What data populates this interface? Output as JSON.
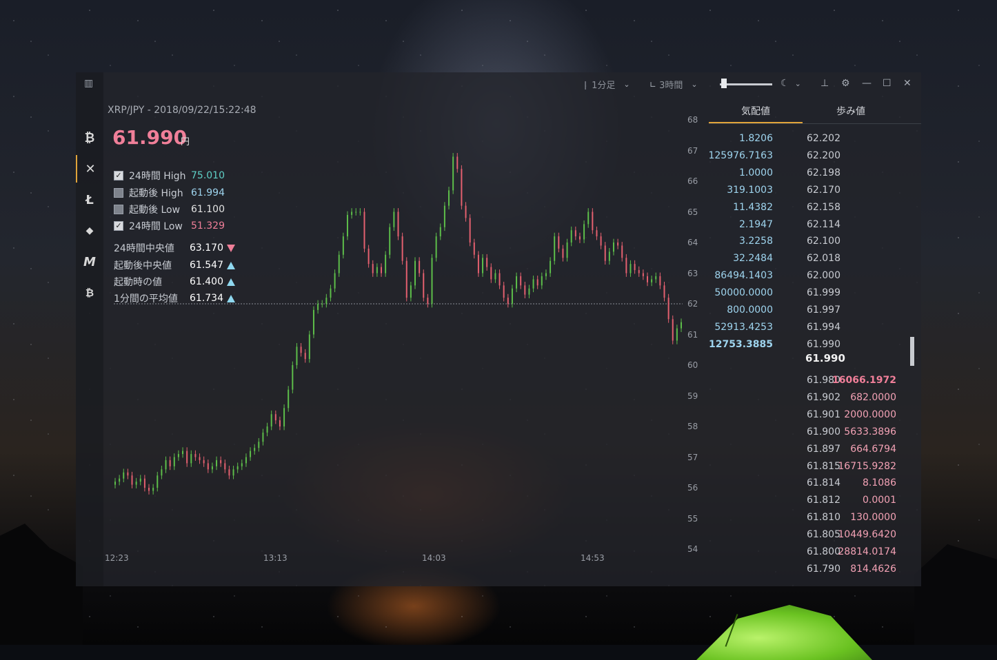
{
  "window": {
    "interval": "1分足",
    "range": "3時間"
  },
  "sidebar": {
    "items": [
      {
        "name": "bitcoin",
        "glyph": "₿"
      },
      {
        "name": "xrp",
        "glyph": "✕"
      },
      {
        "name": "litecoin",
        "glyph": "Ł"
      },
      {
        "name": "ethereum",
        "glyph": "◆"
      },
      {
        "name": "monacoin",
        "glyph": "M"
      },
      {
        "name": "bitcoin-cash",
        "glyph": "₿"
      }
    ]
  },
  "ticker": {
    "pair": "XRP/JPY - 2018/09/22/15:22:48",
    "price": "61.990",
    "unit": "円"
  },
  "stats": {
    "h24_high_label": "24時間 High",
    "h24_high": "75.010",
    "boot_high_label": "起動後 High",
    "boot_high": "61.994",
    "boot_low_label": "起動後 Low",
    "boot_low": "61.100",
    "h24_low_label": "24時間 Low",
    "h24_low": "51.329",
    "h24_mid_label": "24時間中央値",
    "h24_mid": "63.170",
    "boot_mid_label": "起動後中央値",
    "boot_mid": "61.547",
    "boot_val_label": "起動時の値",
    "boot_val": "61.400",
    "avg1m_label": "1分間の平均値",
    "avg1m": "61.734"
  },
  "chart_data": {
    "type": "candlestick",
    "x_ticks": [
      "12:23",
      "13:13",
      "14:03",
      "14:53"
    ],
    "y_ticks": [
      68,
      67,
      66,
      65,
      64,
      63,
      62,
      61,
      60,
      59,
      58,
      57,
      56,
      55,
      54
    ],
    "ylim": [
      54,
      68
    ],
    "reference_line": 62.0,
    "close": [
      56.2,
      56.3,
      56.5,
      56.4,
      56.1,
      56.2,
      56.3,
      56.0,
      55.9,
      56.0,
      56.4,
      56.6,
      56.9,
      56.7,
      57.0,
      57.1,
      57.2,
      56.8,
      57.1,
      57.0,
      56.9,
      56.8,
      56.6,
      56.7,
      56.9,
      56.8,
      56.6,
      56.4,
      56.6,
      56.7,
      56.8,
      57.0,
      57.2,
      57.3,
      57.5,
      57.8,
      58.0,
      58.4,
      58.2,
      58.0,
      58.6,
      59.2,
      60.0,
      60.6,
      60.4,
      60.2,
      61.0,
      61.8,
      62.0,
      62.0,
      62.2,
      62.5,
      63.0,
      63.6,
      64.2,
      64.9,
      65.0,
      65.0,
      65.0,
      63.8,
      63.3,
      63.0,
      63.2,
      63.0,
      63.6,
      64.5,
      65.0,
      64.2,
      63.4,
      62.2,
      62.6,
      63.4,
      63.0,
      62.2,
      62.0,
      63.5,
      64.2,
      64.5,
      65.2,
      65.7,
      66.8,
      66.4,
      65.2,
      64.8,
      64.0,
      63.6,
      63.0,
      63.5,
      63.2,
      62.8,
      63.0,
      62.6,
      62.2,
      62.0,
      62.5,
      62.9,
      62.6,
      62.3,
      62.5,
      62.8,
      62.6,
      62.9,
      63.0,
      63.4,
      64.2,
      63.8,
      63.5,
      64.0,
      64.4,
      64.2,
      64.1,
      64.6,
      65.0,
      64.4,
      64.2,
      63.9,
      63.4,
      63.7,
      64.0,
      63.9,
      63.5,
      63.0,
      63.3,
      63.1,
      63.0,
      62.9,
      62.7,
      62.8,
      62.9,
      62.6,
      62.2,
      61.5,
      60.8,
      61.2,
      61.4
    ]
  },
  "orderbook": {
    "tab_board": "気配値",
    "tab_trades": "歩み値",
    "asks": [
      {
        "qty": "1.8206",
        "price": "62.202"
      },
      {
        "qty": "125976.7163",
        "price": "62.200"
      },
      {
        "qty": "1.0000",
        "price": "62.198"
      },
      {
        "qty": "319.1003",
        "price": "62.170"
      },
      {
        "qty": "11.4382",
        "price": "62.158"
      },
      {
        "qty": "2.1947",
        "price": "62.114"
      },
      {
        "qty": "3.2258",
        "price": "62.100"
      },
      {
        "qty": "32.2484",
        "price": "62.018"
      },
      {
        "qty": "86494.1403",
        "price": "62.000"
      },
      {
        "qty": "50000.0000",
        "price": "61.999"
      },
      {
        "qty": "800.0000",
        "price": "61.997"
      },
      {
        "qty": "52913.4253",
        "price": "61.994"
      },
      {
        "qty": "12753.3885",
        "price": "61.990"
      }
    ],
    "last_price": "61.990",
    "bids": [
      {
        "price": "61.980",
        "qty": "16066.1972"
      },
      {
        "price": "61.902",
        "qty": "682.0000"
      },
      {
        "price": "61.901",
        "qty": "2000.0000"
      },
      {
        "price": "61.900",
        "qty": "5633.3896"
      },
      {
        "price": "61.897",
        "qty": "664.6794"
      },
      {
        "price": "61.815",
        "qty": "16715.9282"
      },
      {
        "price": "61.814",
        "qty": "8.1086"
      },
      {
        "price": "61.812",
        "qty": "0.0001"
      },
      {
        "price": "61.810",
        "qty": "130.0000"
      },
      {
        "price": "61.805",
        "qty": "10449.6420"
      },
      {
        "price": "61.800",
        "qty": "28814.0174"
      },
      {
        "price": "61.790",
        "qty": "814.4626"
      }
    ]
  },
  "colors": {
    "up": "#5dbe4a",
    "down": "#e4606f",
    "accent": "#e0a43a",
    "price": "#f07f99"
  }
}
